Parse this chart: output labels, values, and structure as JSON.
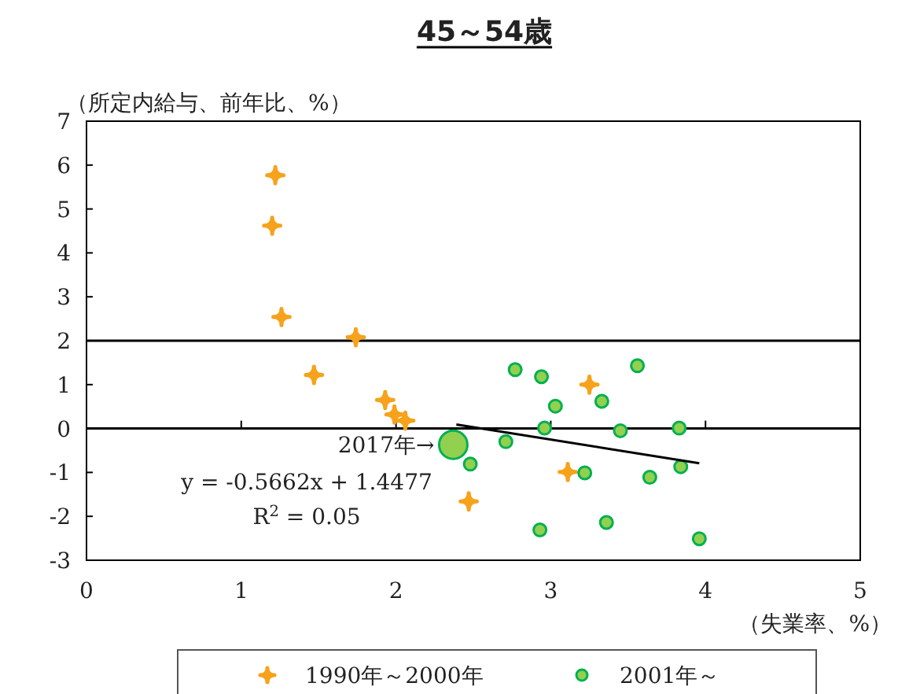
{
  "chart_data": {
    "type": "scatter",
    "title": "45～54歳",
    "xlabel": "（失業率、%）",
    "ylabel": "（所定内給与、前年比、%）",
    "xlim": [
      0,
      5
    ],
    "ylim": [
      -3,
      7
    ],
    "xticks": [
      0,
      1,
      2,
      3,
      4,
      5
    ],
    "yticks": [
      -3,
      -2,
      -1,
      0,
      1,
      2,
      3,
      4,
      5,
      6,
      7
    ],
    "grid": false,
    "legend": "bottom",
    "series": [
      {
        "name": "1990年～2000年",
        "color": "#f7a21b",
        "marker": "diamond",
        "x": [
          1.22,
          1.2,
          1.26,
          1.74,
          1.47,
          1.93,
          1.99,
          2.06,
          2.47,
          3.25,
          3.11
        ],
        "values": [
          5.77,
          4.62,
          2.54,
          2.08,
          1.22,
          0.65,
          0.32,
          0.18,
          -1.66,
          1.0,
          -0.99
        ]
      },
      {
        "name": "2001年～",
        "color": "#92d050",
        "marker": "circle",
        "x": [
          2.77,
          2.94,
          3.03,
          3.33,
          3.56,
          2.96,
          3.45,
          3.83,
          2.71,
          2.48,
          3.22,
          3.64,
          3.84,
          2.93,
          3.36,
          3.96
        ],
        "values": [
          1.34,
          1.18,
          0.51,
          0.62,
          1.43,
          0.01,
          -0.05,
          0.01,
          -0.3,
          -0.81,
          -1.01,
          -1.11,
          -0.87,
          -2.31,
          -2.14,
          -2.51
        ]
      },
      {
        "color": "#92d050",
        "marker": "circle",
        "x": [
          2.37
        ],
        "values": [
          -0.37
        ]
      },
      {
        "type": "line",
        "color": "#000000",
        "marker": "none",
        "x": [
          2.39,
          3.96
        ],
        "values": [
          0.09,
          -0.79
        ]
      }
    ],
    "ref_lines": [
      {
        "axis": "y",
        "value": 0,
        "color": "#000000"
      },
      {
        "axis": "y",
        "value": 2,
        "color": "#000000"
      }
    ],
    "annotations": [
      {
        "text": "2017年→",
        "x": 2.37,
        "y": -0.37
      },
      "y = -0.5662x + 1.4477",
      "R$^{2}$ = 0.05"
    ]
  }
}
